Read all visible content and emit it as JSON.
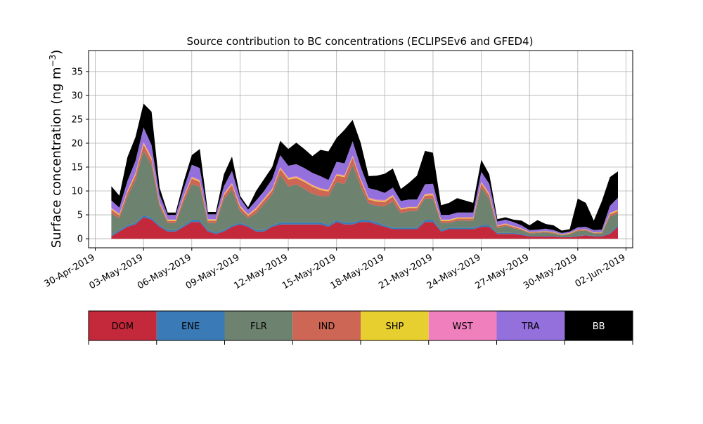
{
  "chart_data": {
    "type": "area",
    "stacked": true,
    "title": "Source contribution to BC concentrations (ECLIPSEv6 and GFED4)",
    "ylabel_main": "Surface concentration (ng m",
    "ylabel_sup": "−3",
    "ylabel_close": ")",
    "xlabel": "",
    "xlim": [
      "2019-04-29T14:00",
      "2019-06-02T10:00"
    ],
    "ylim": [
      -1.9,
      39.4
    ],
    "grid": true,
    "y_ticks": [
      0,
      5,
      10,
      15,
      20,
      25,
      30,
      35
    ],
    "x_ticks": [
      {
        "date": "2019-04-30",
        "label": "30-Apr-2019"
      },
      {
        "date": "2019-05-03",
        "label": "03-May-2019"
      },
      {
        "date": "2019-05-06",
        "label": "06-May-2019"
      },
      {
        "date": "2019-05-09",
        "label": "09-May-2019"
      },
      {
        "date": "2019-05-12",
        "label": "12-May-2019"
      },
      {
        "date": "2019-05-15",
        "label": "15-May-2019"
      },
      {
        "date": "2019-05-18",
        "label": "18-May-2019"
      },
      {
        "date": "2019-05-21",
        "label": "21-May-2019"
      },
      {
        "date": "2019-05-24",
        "label": "24-May-2019"
      },
      {
        "date": "2019-05-27",
        "label": "27-May-2019"
      },
      {
        "date": "2019-05-30",
        "label": "30-May-2019"
      },
      {
        "date": "2019-06-02",
        "label": "02-Jun-2019"
      }
    ],
    "x": [
      "2019-05-01T00:00",
      "2019-05-01T12:00",
      "2019-05-02T00:00",
      "2019-05-02T12:00",
      "2019-05-03T00:00",
      "2019-05-03T12:00",
      "2019-05-04T00:00",
      "2019-05-04T12:00",
      "2019-05-05T00:00",
      "2019-05-05T12:00",
      "2019-05-06T00:00",
      "2019-05-06T12:00",
      "2019-05-07T00:00",
      "2019-05-07T12:00",
      "2019-05-08T00:00",
      "2019-05-08T12:00",
      "2019-05-09T00:00",
      "2019-05-09T12:00",
      "2019-05-10T00:00",
      "2019-05-10T12:00",
      "2019-05-11T00:00",
      "2019-05-11T12:00",
      "2019-05-12T00:00",
      "2019-05-12T12:00",
      "2019-05-13T00:00",
      "2019-05-13T12:00",
      "2019-05-14T00:00",
      "2019-05-14T12:00",
      "2019-05-15T00:00",
      "2019-05-15T12:00",
      "2019-05-16T00:00",
      "2019-05-16T12:00",
      "2019-05-17T00:00",
      "2019-05-17T12:00",
      "2019-05-18T00:00",
      "2019-05-18T12:00",
      "2019-05-19T00:00",
      "2019-05-19T12:00",
      "2019-05-20T00:00",
      "2019-05-20T12:00",
      "2019-05-21T00:00",
      "2019-05-21T12:00",
      "2019-05-22T00:00",
      "2019-05-22T12:00",
      "2019-05-23T00:00",
      "2019-05-23T12:00",
      "2019-05-24T00:00",
      "2019-05-24T12:00",
      "2019-05-25T00:00",
      "2019-05-25T12:00",
      "2019-05-26T00:00",
      "2019-05-26T12:00",
      "2019-05-27T00:00",
      "2019-05-27T12:00",
      "2019-05-28T00:00",
      "2019-05-28T12:00",
      "2019-05-29T00:00",
      "2019-05-29T12:00",
      "2019-05-30T00:00",
      "2019-05-30T12:00",
      "2019-05-31T00:00",
      "2019-05-31T12:00",
      "2019-06-01T00:00",
      "2019-06-01T12:00"
    ],
    "series": [
      {
        "name": "DOM",
        "color": "#c3293a",
        "values": [
          0.5,
          1.5,
          2.5,
          3.0,
          4.5,
          4.0,
          2.5,
          1.5,
          1.5,
          2.5,
          3.5,
          3.5,
          1.5,
          1.0,
          1.5,
          2.5,
          3.0,
          2.5,
          1.5,
          1.5,
          2.5,
          3.0,
          3.0,
          3.0,
          3.0,
          3.0,
          3.0,
          2.5,
          3.5,
          3.0,
          3.0,
          3.5,
          3.5,
          3.0,
          2.5,
          2.0,
          2.0,
          2.0,
          2.0,
          3.5,
          3.5,
          1.5,
          2.0,
          2.0,
          2.0,
          2.0,
          2.5,
          2.5,
          1.0,
          1.0,
          1.0,
          0.8,
          0.5,
          0.5,
          0.5,
          0.5,
          0.3,
          0.3,
          0.5,
          0.7,
          0.5,
          0.5,
          1.0,
          2.5
        ]
      },
      {
        "name": "ENE",
        "color": "#3a7ab7",
        "values": [
          0.3,
          0.3,
          0.3,
          0.3,
          0.4,
          0.4,
          0.3,
          0.3,
          0.3,
          0.3,
          0.4,
          0.4,
          0.3,
          0.3,
          0.3,
          0.3,
          0.3,
          0.3,
          0.3,
          0.3,
          0.3,
          0.4,
          0.4,
          0.4,
          0.4,
          0.4,
          0.4,
          0.4,
          0.4,
          0.4,
          0.4,
          0.4,
          0.4,
          0.4,
          0.3,
          0.3,
          0.3,
          0.3,
          0.3,
          0.4,
          0.4,
          0.3,
          0.3,
          0.3,
          0.3,
          0.3,
          0.3,
          0.3,
          0.2,
          0.2,
          0.2,
          0.2,
          0.1,
          0.1,
          0.1,
          0.1,
          0.1,
          0.1,
          0.1,
          0.1,
          0.1,
          0.1,
          0.2,
          0.3
        ]
      },
      {
        "name": "FLR",
        "color": "#6e8270",
        "values": [
          4.5,
          2.5,
          6.0,
          9.0,
          13.5,
          11.0,
          4.0,
          1.5,
          1.5,
          5.0,
          7.5,
          7.0,
          1.5,
          2.0,
          6.5,
          7.5,
          2.5,
          1.5,
          3.5,
          5.5,
          6.5,
          10.0,
          7.5,
          8.0,
          7.0,
          6.0,
          5.5,
          6.0,
          8.0,
          8.0,
          12.0,
          7.0,
          3.5,
          3.5,
          4.0,
          5.5,
          3.0,
          3.5,
          3.5,
          4.5,
          4.5,
          1.5,
          1.0,
          1.5,
          1.5,
          1.5,
          8.0,
          5.5,
          1.0,
          1.5,
          1.0,
          0.8,
          0.5,
          0.6,
          0.7,
          0.5,
          0.3,
          0.5,
          1.0,
          0.9,
          0.5,
          0.5,
          3.5,
          2.5
        ]
      },
      {
        "name": "IND",
        "color": "#cd6654",
        "values": [
          0.8,
          0.6,
          0.9,
          1.0,
          1.3,
          1.1,
          0.6,
          0.4,
          0.4,
          0.8,
          1.2,
          1.0,
          0.5,
          0.5,
          0.8,
          1.0,
          0.8,
          0.5,
          0.8,
          0.8,
          0.8,
          1.2,
          1.5,
          1.3,
          1.5,
          1.5,
          1.3,
          1.0,
          1.3,
          1.5,
          1.6,
          1.3,
          0.8,
          0.9,
          0.9,
          1.0,
          0.8,
          0.6,
          0.6,
          0.6,
          0.7,
          0.4,
          0.4,
          0.4,
          0.4,
          0.4,
          0.8,
          0.8,
          0.4,
          0.3,
          0.3,
          0.2,
          0.2,
          0.2,
          0.2,
          0.2,
          0.1,
          0.2,
          0.2,
          0.2,
          0.1,
          0.2,
          0.4,
          0.5
        ]
      },
      {
        "name": "SHP",
        "color": "#e8cf30",
        "values": [
          0.2,
          0.2,
          0.2,
          0.3,
          0.3,
          0.3,
          0.2,
          0.2,
          0.2,
          0.2,
          0.2,
          0.2,
          0.2,
          0.2,
          0.2,
          0.2,
          0.2,
          0.2,
          0.2,
          0.2,
          0.2,
          0.2,
          0.2,
          0.2,
          0.2,
          0.2,
          0.2,
          0.2,
          0.2,
          0.2,
          0.2,
          0.2,
          0.2,
          0.2,
          0.2,
          0.2,
          0.2,
          0.2,
          0.2,
          0.2,
          0.2,
          0.2,
          0.2,
          0.2,
          0.2,
          0.2,
          0.2,
          0.2,
          0.1,
          0.1,
          0.1,
          0.1,
          0.1,
          0.1,
          0.1,
          0.1,
          0.1,
          0.1,
          0.1,
          0.1,
          0.1,
          0.1,
          0.2,
          0.2
        ]
      },
      {
        "name": "WST",
        "color": "#f07fbd",
        "values": [
          0.2,
          0.1,
          0.2,
          0.2,
          0.3,
          0.3,
          0.1,
          0.1,
          0.1,
          0.2,
          0.2,
          0.2,
          0.1,
          0.1,
          0.2,
          0.2,
          0.2,
          0.1,
          0.2,
          0.2,
          0.2,
          0.2,
          0.2,
          0.2,
          0.2,
          0.2,
          0.2,
          0.2,
          0.2,
          0.2,
          0.2,
          0.2,
          0.2,
          0.2,
          0.2,
          0.2,
          0.1,
          0.1,
          0.1,
          0.2,
          0.2,
          0.1,
          0.1,
          0.1,
          0.1,
          0.1,
          0.2,
          0.2,
          0.1,
          0.1,
          0.1,
          0.1,
          0.0,
          0.0,
          0.0,
          0.0,
          0.0,
          0.0,
          0.0,
          0.0,
          0.0,
          0.0,
          0.1,
          0.1
        ]
      },
      {
        "name": "TRA",
        "color": "#9370db",
        "values": [
          1.5,
          1.3,
          2.0,
          2.5,
          3.0,
          2.5,
          1.5,
          1.0,
          1.0,
          1.5,
          2.5,
          2.5,
          1.0,
          1.0,
          1.5,
          2.5,
          1.5,
          1.0,
          1.5,
          1.5,
          2.0,
          2.5,
          2.5,
          2.5,
          2.5,
          2.5,
          2.5,
          2.0,
          2.5,
          2.5,
          3.0,
          2.5,
          2.0,
          2.0,
          1.5,
          1.5,
          1.5,
          1.5,
          1.5,
          2.0,
          2.0,
          1.0,
          1.0,
          1.0,
          1.0,
          1.0,
          2.0,
          2.0,
          0.8,
          0.8,
          0.8,
          0.6,
          0.4,
          0.4,
          0.5,
          0.4,
          0.3,
          0.3,
          0.5,
          0.5,
          0.5,
          0.5,
          1.5,
          2.5
        ]
      },
      {
        "name": "BB",
        "color": "#000000",
        "values": [
          3.0,
          2.5,
          5.0,
          5.0,
          5.0,
          7.0,
          1.5,
          0.5,
          0.5,
          1.5,
          2.0,
          4.0,
          0.5,
          0.5,
          2.5,
          3.0,
          0.5,
          0.5,
          2.0,
          2.5,
          2.5,
          3.0,
          3.5,
          4.5,
          4.0,
          3.5,
          5.5,
          6.0,
          5.0,
          7.0,
          4.5,
          5.0,
          2.5,
          3.0,
          4.0,
          4.0,
          2.5,
          3.5,
          5.0,
          7.0,
          6.5,
          2.0,
          2.5,
          3.0,
          2.5,
          2.0,
          2.5,
          2.0,
          0.5,
          0.5,
          0.5,
          1.0,
          1.0,
          2.0,
          1.0,
          1.0,
          0.5,
          0.5,
          6.0,
          5.0,
          2.0,
          6.0,
          6.0,
          5.5
        ]
      }
    ],
    "legend": {
      "placement": "below",
      "items": [
        {
          "label": "DOM",
          "color": "#c3293a",
          "text_color": "#000000"
        },
        {
          "label": "ENE",
          "color": "#3a7ab7",
          "text_color": "#000000"
        },
        {
          "label": "FLR",
          "color": "#6e8270",
          "text_color": "#000000"
        },
        {
          "label": "IND",
          "color": "#cd6654",
          "text_color": "#000000"
        },
        {
          "label": "SHP",
          "color": "#e8cf30",
          "text_color": "#000000"
        },
        {
          "label": "WST",
          "color": "#f07fbd",
          "text_color": "#000000"
        },
        {
          "label": "TRA",
          "color": "#9370db",
          "text_color": "#000000"
        },
        {
          "label": "BB",
          "color": "#000000",
          "text_color": "#ffffff"
        }
      ]
    }
  }
}
